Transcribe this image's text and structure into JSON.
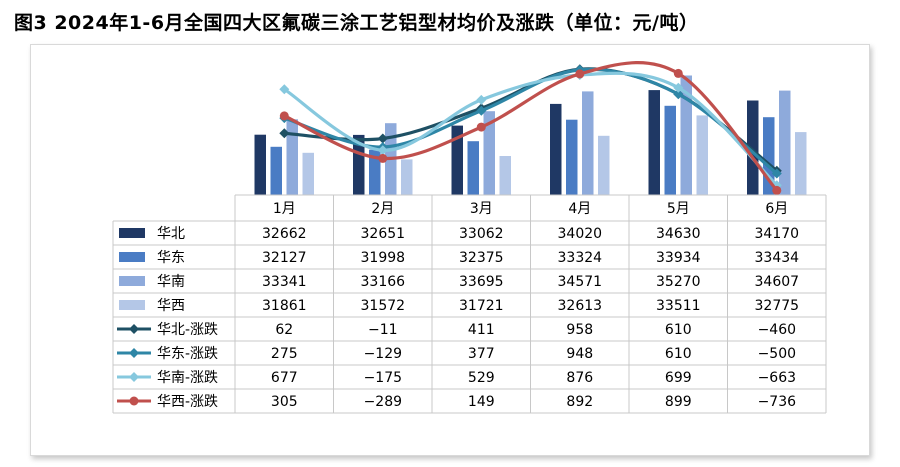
{
  "title": "图3  2024年1-6月全国四大区氟碳三涂工艺铝型材均价及涨跌（单位：元/吨）",
  "chart_data": {
    "type": "bar",
    "categories": [
      "1月",
      "2月",
      "3月",
      "4月",
      "5月",
      "6月"
    ],
    "bar_series": [
      {
        "name": "华北",
        "color": "#1f3864",
        "values": [
          32662,
          32651,
          33062,
          34020,
          34630,
          34170
        ]
      },
      {
        "name": "华东",
        "color": "#4a7cc4",
        "values": [
          32127,
          31998,
          32375,
          33324,
          33934,
          33434
        ]
      },
      {
        "name": "华南",
        "color": "#8eaadb",
        "values": [
          33341,
          33166,
          33695,
          34571,
          35270,
          34607
        ]
      },
      {
        "name": "华西",
        "color": "#b4c7e7",
        "values": [
          31861,
          31572,
          31721,
          32613,
          33511,
          32775
        ]
      }
    ],
    "line_series": [
      {
        "name": "华北-涨跌",
        "color": "#1e5064",
        "values": [
          62,
          -11,
          411,
          958,
          610,
          -460
        ]
      },
      {
        "name": "华东-涨跌",
        "color": "#2e86a6",
        "values": [
          275,
          -129,
          377,
          948,
          610,
          -500
        ]
      },
      {
        "name": "华南-涨跌",
        "color": "#86c8de",
        "values": [
          677,
          -175,
          529,
          876,
          699,
          -663
        ]
      },
      {
        "name": "华西-涨跌",
        "color": "#c0504d",
        "values": [
          305,
          -289,
          149,
          892,
          899,
          -736
        ]
      }
    ],
    "bar_ylim": [
      30000,
      36000
    ],
    "line_ylim": [
      -800,
      1100
    ],
    "gridlines": false,
    "legend": "data-table"
  }
}
